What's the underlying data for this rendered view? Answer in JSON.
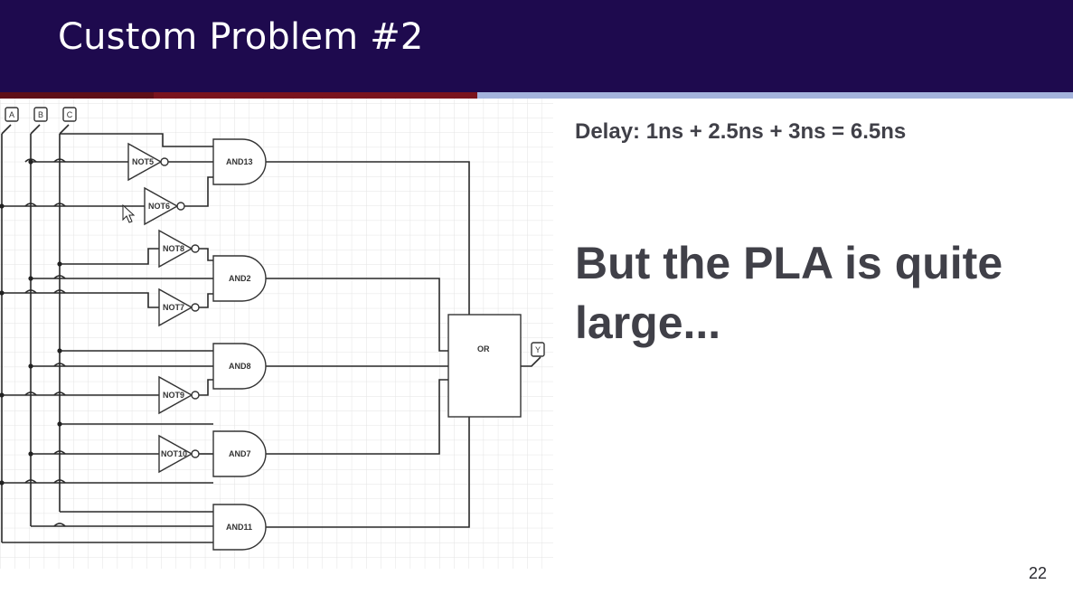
{
  "slide": {
    "title": "Custom Problem #2",
    "delay_text": "Delay: 1ns + 2.5ns + 3ns = 6.5ns",
    "note_text": "But the PLA is quite large...",
    "page_number": "22"
  },
  "circuit": {
    "inputs": [
      "A",
      "B",
      "C"
    ],
    "output": "Y",
    "not_gates": [
      "NOT5",
      "NOT6",
      "NOT8",
      "NOT7",
      "NOT9",
      "NOT10"
    ],
    "and_gates": [
      "AND13",
      "AND2",
      "AND8",
      "AND7",
      "AND11"
    ],
    "or_gate": "OR"
  },
  "colors": {
    "header_bg": "#1e0a4e",
    "header_text": "#ffffff",
    "stripe_red": "#5e0f17",
    "stripe_blue": "#a4b3dc",
    "body_text": "#404048"
  }
}
